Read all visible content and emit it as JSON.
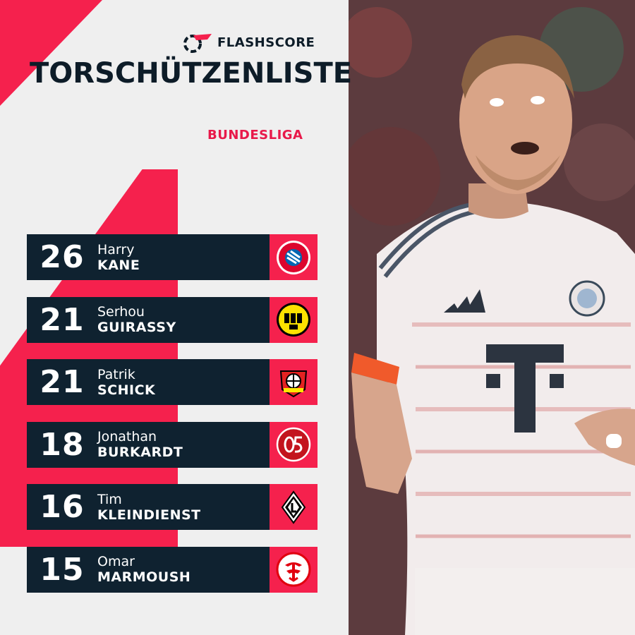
{
  "brand": {
    "name": "FLASHSCORE",
    "accent_color": "#f5214d",
    "dark_color": "#0f2230"
  },
  "title": "TORSCHÜTZENLISTE",
  "league": "BUNDESLIGA",
  "scorers": [
    {
      "goals": "26",
      "first_name": "Harry",
      "last_name": "KANE",
      "club_icon": "fc-bayern-muenchen-crest-icon"
    },
    {
      "goals": "21",
      "first_name": "Serhou",
      "last_name": "GUIRASSY",
      "club_icon": "bvb-09-crest-icon"
    },
    {
      "goals": "21",
      "first_name": "Patrik",
      "last_name": "SCHICK",
      "club_icon": "bayer-leverkusen-crest-icon"
    },
    {
      "goals": "18",
      "first_name": "Jonathan",
      "last_name": "BURKARDT",
      "club_icon": "mainz-05-crest-icon"
    },
    {
      "goals": "16",
      "first_name": "Tim",
      "last_name": "KLEINDIENST",
      "club_icon": "borussia-moenchengladbach-crest-icon"
    },
    {
      "goals": "15",
      "first_name": "Omar",
      "last_name": "MARMOUSH",
      "club_icon": "eintracht-frankfurt-crest-icon"
    }
  ],
  "photo": {
    "subject": "player-photo-harry-kane"
  }
}
